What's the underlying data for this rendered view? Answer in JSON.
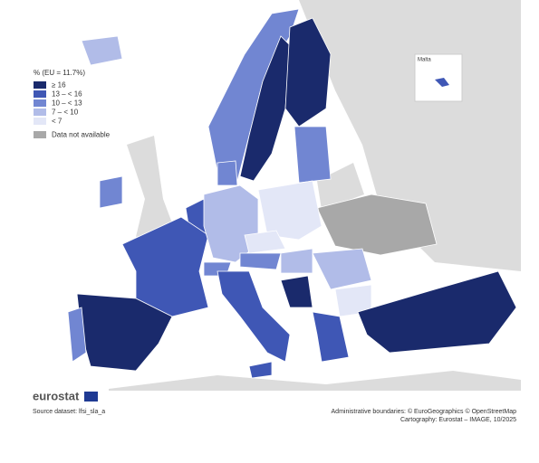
{
  "legend": {
    "title": "% (EU = 11.7%)",
    "items": [
      {
        "label": "≥ 16",
        "color": "#1a2a6c"
      },
      {
        "label": "13 – < 16",
        "color": "#3f57b5"
      },
      {
        "label": "10 – < 13",
        "color": "#7186d2"
      },
      {
        "label": "7 – < 10",
        "color": "#b1bce8"
      },
      {
        "label": "< 7",
        "color": "#e3e7f7"
      },
      {
        "label": "Data not available",
        "color": "#a8a8a8"
      }
    ]
  },
  "inset": {
    "label": "Malta"
  },
  "footer": {
    "logo": "eurostat",
    "source": "Source dataset: lfsi_sla_a",
    "credits": [
      "Administrative boundaries: © EuroGeographics © OpenStreetMap",
      "Cartography: Eurostat – IMAGE, 10/2025"
    ]
  }
}
